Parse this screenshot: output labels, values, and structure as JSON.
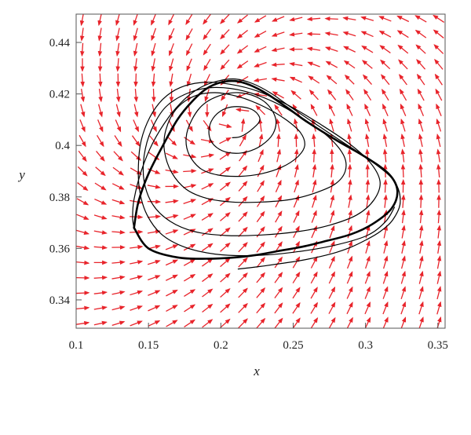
{
  "chart_data": {
    "type": "line",
    "subtype": "phase-portrait",
    "title": "",
    "xlabel": "x",
    "ylabel": "y",
    "xlim": [
      0.1,
      0.355
    ],
    "ylim": [
      0.329,
      0.451
    ],
    "xticks": [
      0.1,
      0.15,
      0.2,
      0.25,
      0.3,
      0.35
    ],
    "xtick_labels": [
      "0.1",
      "0.15",
      "0.2",
      "0.25",
      "0.3",
      "0.35"
    ],
    "yticks": [
      0.34,
      0.36,
      0.38,
      0.4,
      0.42,
      0.44
    ],
    "ytick_labels": [
      "0.34",
      "0.36",
      "0.38",
      "0.4",
      "0.42",
      "0.44"
    ],
    "grid": false,
    "legend": "none",
    "vector_field_color": "#e8242b",
    "trajectory_color": "#000000",
    "equilibrium": [
      0.208,
      0.41
    ],
    "limit_cycle": {
      "x": [
        0.14,
        0.15,
        0.17,
        0.19,
        0.21,
        0.225,
        0.24,
        0.255,
        0.27,
        0.29,
        0.305,
        0.318,
        0.322,
        0.316,
        0.3,
        0.28,
        0.26,
        0.245,
        0.232,
        0.22,
        0.21,
        0.2,
        0.19,
        0.18,
        0.17,
        0.16,
        0.15,
        0.143,
        0.14
      ],
      "y": [
        0.368,
        0.36,
        0.3565,
        0.356,
        0.3565,
        0.3575,
        0.359,
        0.3605,
        0.3625,
        0.3655,
        0.3695,
        0.3755,
        0.3825,
        0.389,
        0.3955,
        0.402,
        0.409,
        0.415,
        0.42,
        0.4235,
        0.425,
        0.4245,
        0.422,
        0.417,
        0.41,
        0.4,
        0.389,
        0.378,
        0.368
      ]
    },
    "trajectories": [
      {
        "x": [
          0.212,
          0.22,
          0.23,
          0.24,
          0.25,
          0.26,
          0.27,
          0.28,
          0.29,
          0.3,
          0.31,
          0.319,
          0.324,
          0.32,
          0.305,
          0.285,
          0.265,
          0.248,
          0.234,
          0.222,
          0.21,
          0.198,
          0.186,
          0.175,
          0.164,
          0.153,
          0.145,
          0.14,
          0.139,
          0.14
        ],
        "y": [
          0.352,
          0.3525,
          0.3532,
          0.354,
          0.3548,
          0.3558,
          0.357,
          0.3585,
          0.3605,
          0.3632,
          0.3665,
          0.3712,
          0.378,
          0.386,
          0.3935,
          0.401,
          0.4085,
          0.415,
          0.4205,
          0.424,
          0.4258,
          0.425,
          0.4225,
          0.418,
          0.411,
          0.401,
          0.39,
          0.379,
          0.372,
          0.368
        ]
      },
      {
        "x": [
          0.208,
          0.214,
          0.222,
          0.227,
          0.223,
          0.214,
          0.204,
          0.196,
          0.192,
          0.193,
          0.199,
          0.208,
          0.218,
          0.228,
          0.236,
          0.238,
          0.233,
          0.224,
          0.212,
          0.2,
          0.188,
          0.18,
          0.176,
          0.178,
          0.186,
          0.198,
          0.213,
          0.228,
          0.242,
          0.253,
          0.258,
          0.255,
          0.245,
          0.23,
          0.213,
          0.196,
          0.181,
          0.169,
          0.162,
          0.161,
          0.166,
          0.176,
          0.19,
          0.208,
          0.228,
          0.248,
          0.265,
          0.279,
          0.286,
          0.285,
          0.275,
          0.258,
          0.238,
          0.217,
          0.196,
          0.178,
          0.162,
          0.152,
          0.147,
          0.147,
          0.153,
          0.165,
          0.182,
          0.204,
          0.228,
          0.253,
          0.275,
          0.294,
          0.306,
          0.31,
          0.303,
          0.288,
          0.268,
          0.247,
          0.226,
          0.206,
          0.188,
          0.172,
          0.16,
          0.151,
          0.145,
          0.143,
          0.144,
          0.149,
          0.159,
          0.175,
          0.196,
          0.222,
          0.25,
          0.277,
          0.301,
          0.314,
          0.32
        ],
        "y": [
          0.403,
          0.4035,
          0.4065,
          0.41,
          0.4135,
          0.415,
          0.4145,
          0.4115,
          0.407,
          0.402,
          0.3985,
          0.397,
          0.3975,
          0.4,
          0.4045,
          0.41,
          0.4155,
          0.419,
          0.4205,
          0.4195,
          0.416,
          0.41,
          0.403,
          0.3965,
          0.391,
          0.3885,
          0.388,
          0.389,
          0.3915,
          0.3955,
          0.4,
          0.405,
          0.41,
          0.415,
          0.4188,
          0.4205,
          0.419,
          0.414,
          0.406,
          0.398,
          0.3895,
          0.383,
          0.3795,
          0.378,
          0.378,
          0.379,
          0.3815,
          0.385,
          0.39,
          0.396,
          0.403,
          0.41,
          0.4165,
          0.421,
          0.4225,
          0.4205,
          0.415,
          0.406,
          0.396,
          0.386,
          0.377,
          0.3705,
          0.3665,
          0.365,
          0.3652,
          0.3665,
          0.369,
          0.373,
          0.379,
          0.386,
          0.3935,
          0.401,
          0.4085,
          0.4155,
          0.421,
          0.4238,
          0.4245,
          0.4225,
          0.418,
          0.411,
          0.402,
          0.392,
          0.382,
          0.373,
          0.3655,
          0.3605,
          0.3578,
          0.3572,
          0.3585,
          0.361,
          0.365,
          0.3705,
          0.376
        ]
      }
    ]
  }
}
